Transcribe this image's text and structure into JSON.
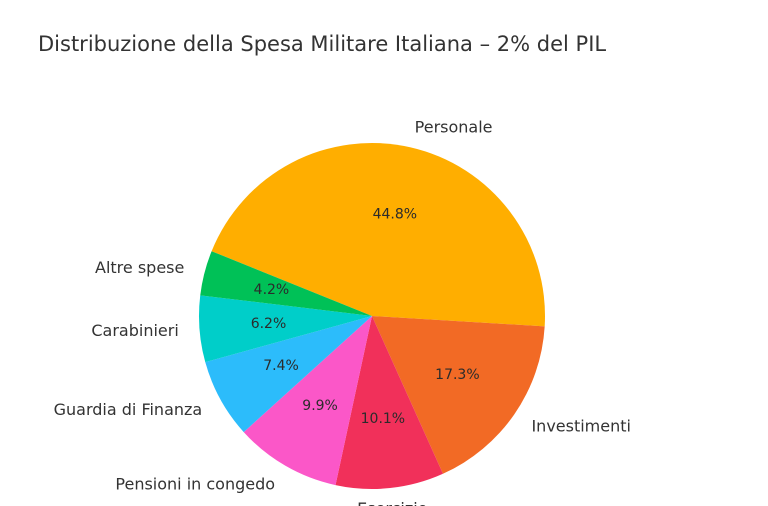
{
  "chart_data": {
    "type": "pie",
    "title": "Distribuzione della Spesa Militare Italiana – 2% del PIL",
    "start_angle_deg": 158,
    "direction": "clockwise",
    "slices": [
      {
        "label": "Personale",
        "value": 44.8,
        "pct_text": "44.8%",
        "color": "#FFAE00"
      },
      {
        "label": "Investimenti",
        "value": 17.3,
        "pct_text": "17.3%",
        "color": "#F26A25"
      },
      {
        "label": "Esercizio",
        "value": 10.1,
        "pct_text": "10.1%",
        "color": "#F1305A"
      },
      {
        "label": "Pensioni in congedo",
        "value": 9.9,
        "pct_text": "9.9%",
        "color": "#FB57C8"
      },
      {
        "label": "Guardia di Finanza",
        "value": 7.4,
        "pct_text": "7.4%",
        "color": "#2CBCFB"
      },
      {
        "label": "Carabinieri",
        "value": 6.2,
        "pct_text": "6.2%",
        "color": "#00CEC9"
      },
      {
        "label": "Altre spese",
        "value": 4.2,
        "pct_text": "4.2%",
        "color": "#00C157"
      }
    ]
  }
}
